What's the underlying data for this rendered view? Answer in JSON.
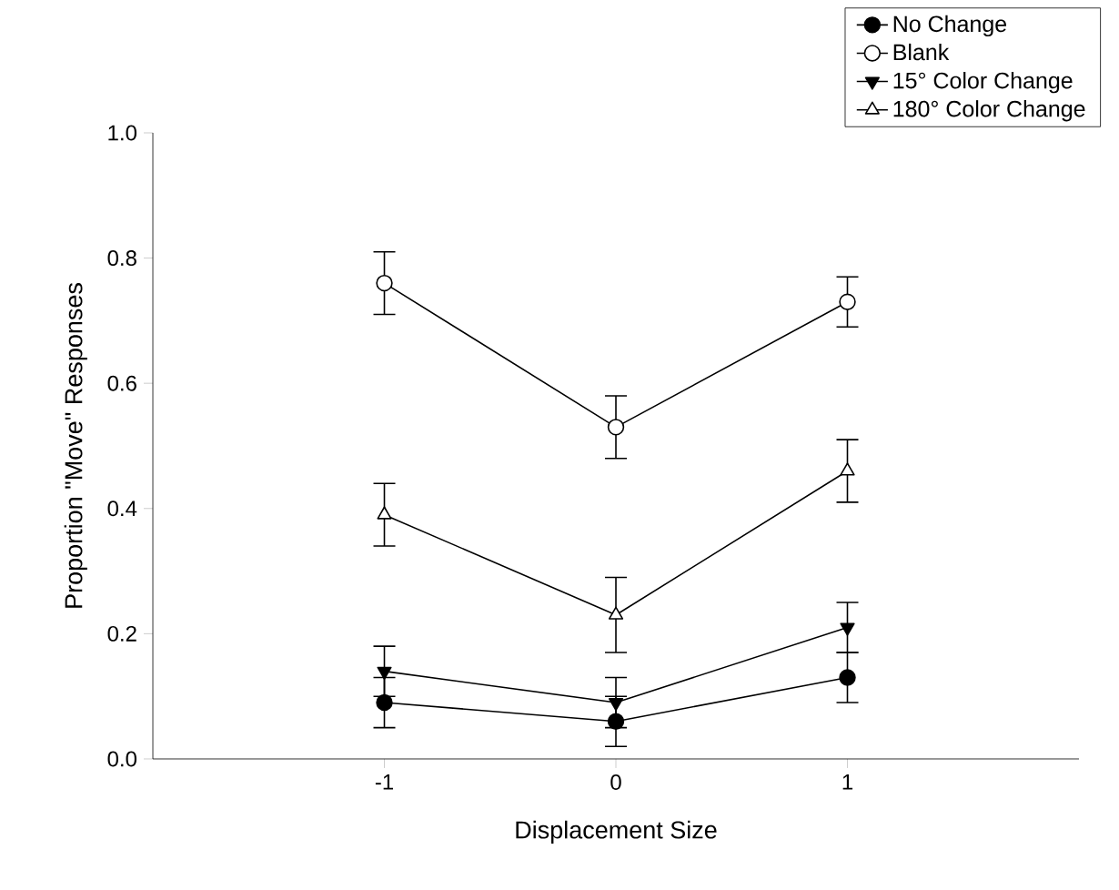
{
  "chart_data": {
    "type": "line",
    "xlabel": "Displacement Size",
    "ylabel": "Proportion \"Move\" Responses",
    "x": [
      -1,
      0,
      1
    ],
    "xlim": [
      -2,
      2
    ],
    "xticks": [
      -1,
      0,
      1
    ],
    "ylim": [
      0,
      1
    ],
    "yticks": [
      {
        "value": 0,
        "label": "0.0"
      },
      {
        "value": 0.2,
        "label": "0.2"
      },
      {
        "value": 0.4,
        "label": "0.4"
      },
      {
        "value": 0.6,
        "label": "0.6"
      },
      {
        "value": 0.8,
        "label": "0.8"
      },
      {
        "value": 1,
        "label": "1.0"
      }
    ],
    "grid": false,
    "legend": "top right",
    "line_style": "solid",
    "series": [
      {
        "name": "No Change",
        "color": "#000000",
        "marker": "circle",
        "values": [
          0.09,
          0.06,
          0.13
        ],
        "errors": [
          0.04,
          0.04,
          0.04
        ]
      },
      {
        "name": "Blank",
        "color": "#000000",
        "marker": "circle_open",
        "values": [
          0.76,
          0.53,
          0.73
        ],
        "errors": [
          0.05,
          0.05,
          0.04
        ]
      },
      {
        "name": "15° Color Change",
        "color": "#000000",
        "marker": "triangle_down",
        "values": [
          0.14,
          0.09,
          0.21
        ],
        "errors": [
          0.04,
          0.04,
          0.04
        ]
      },
      {
        "name": "180° Color Change",
        "color": "#000000",
        "marker": "triangle_open",
        "values": [
          0.39,
          0.23,
          0.46
        ],
        "errors": [
          0.05,
          0.06,
          0.05
        ]
      }
    ]
  }
}
